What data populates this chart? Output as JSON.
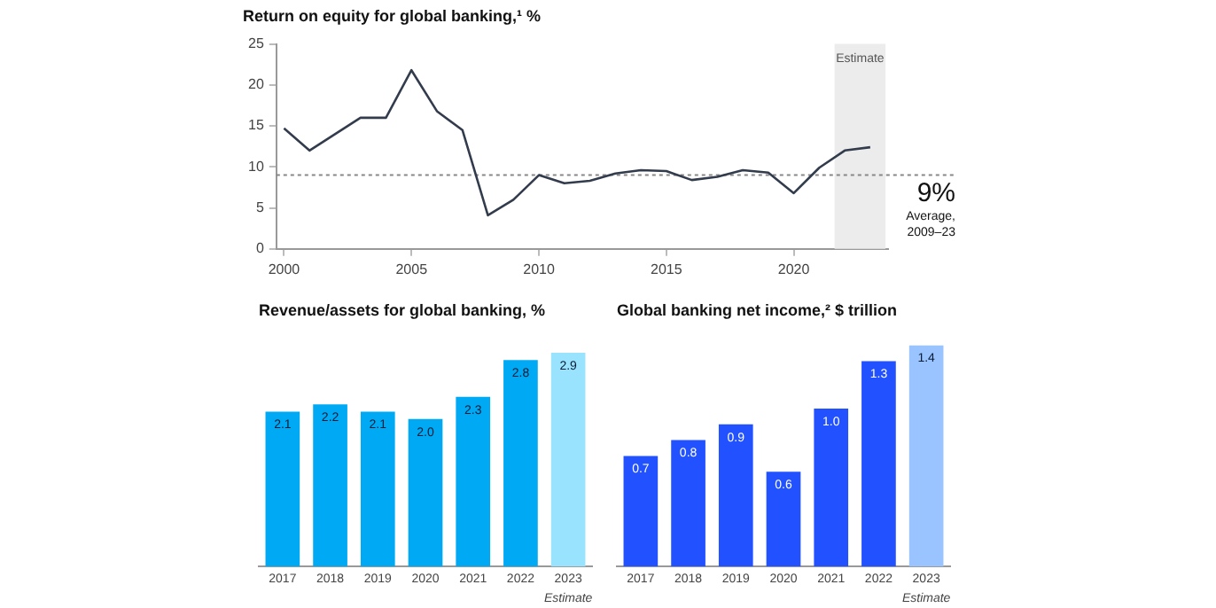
{
  "chart_data": [
    {
      "type": "line",
      "title": "Return on equity for global banking,¹ %",
      "x": [
        2000,
        2001,
        2002,
        2003,
        2004,
        2005,
        2006,
        2007,
        2008,
        2009,
        2010,
        2011,
        2012,
        2013,
        2014,
        2015,
        2016,
        2017,
        2018,
        2019,
        2020,
        2021,
        2022,
        2023
      ],
      "series": [
        {
          "color": "#333c4d",
          "values": [
            14.7,
            12,
            14,
            16,
            16,
            21.8,
            16.8,
            14.5,
            4.1,
            6,
            9,
            8,
            8.3,
            9.2,
            9.6,
            9.5,
            8.4,
            8.8,
            9.6,
            9.3,
            6.8,
            9.9,
            12,
            12.4
          ]
        }
      ],
      "xlim": [
        1999.7,
        2023.7
      ],
      "xticks": [
        2000,
        2005,
        2010,
        2015,
        2020
      ],
      "ylim": [
        0,
        25
      ],
      "yticks": [
        0,
        5,
        10,
        15,
        20,
        25
      ],
      "ref_lines": [
        {
          "axis": "y",
          "value": 9,
          "label": "9%",
          "color": "#888888",
          "line_style": "dotted"
        }
      ],
      "bands": [
        {
          "axis": "x",
          "from": 2021.6,
          "to": 2023.6,
          "label": "Estimate",
          "color": "#ececec"
        }
      ],
      "annotations": [
        "Average, 2009–23"
      ],
      "grid": false,
      "legend": false,
      "marker": "none",
      "line_style": "solid"
    },
    {
      "type": "bar",
      "title": "Revenue/assets for global banking, %",
      "categories": [
        "2017",
        "2018",
        "2019",
        "2020",
        "2021",
        "2022",
        "2023"
      ],
      "values": [
        2.1,
        2.2,
        2.1,
        2.0,
        2.3,
        2.8,
        2.9
      ],
      "colors": [
        "#00a9f4",
        "#00a9f4",
        "#00a9f4",
        "#00a9f4",
        "#00a9f4",
        "#00a9f4",
        "#99e3ff"
      ],
      "value_labels": [
        "2.1",
        "2.2",
        "2.1",
        "2.0",
        "2.3",
        "2.8",
        "2.9"
      ],
      "annotations": [
        "Estimate"
      ],
      "grid": false,
      "legend": false
    },
    {
      "type": "bar",
      "title": "Global banking net income,² $ trillion",
      "categories": [
        "2017",
        "2018",
        "2019",
        "2020",
        "2021",
        "2022",
        "2023"
      ],
      "values": [
        0.7,
        0.8,
        0.9,
        0.6,
        1.0,
        1.3,
        1.4
      ],
      "colors": [
        "#2251ff",
        "#2251ff",
        "#2251ff",
        "#2251ff",
        "#2251ff",
        "#2251ff",
        "#99c4ff"
      ],
      "value_labels": [
        "0.7",
        "0.8",
        "0.9",
        "0.6",
        "1.0",
        "1.3",
        "1.4"
      ],
      "annotations": [
        "Estimate"
      ],
      "grid": false,
      "legend": false
    }
  ]
}
